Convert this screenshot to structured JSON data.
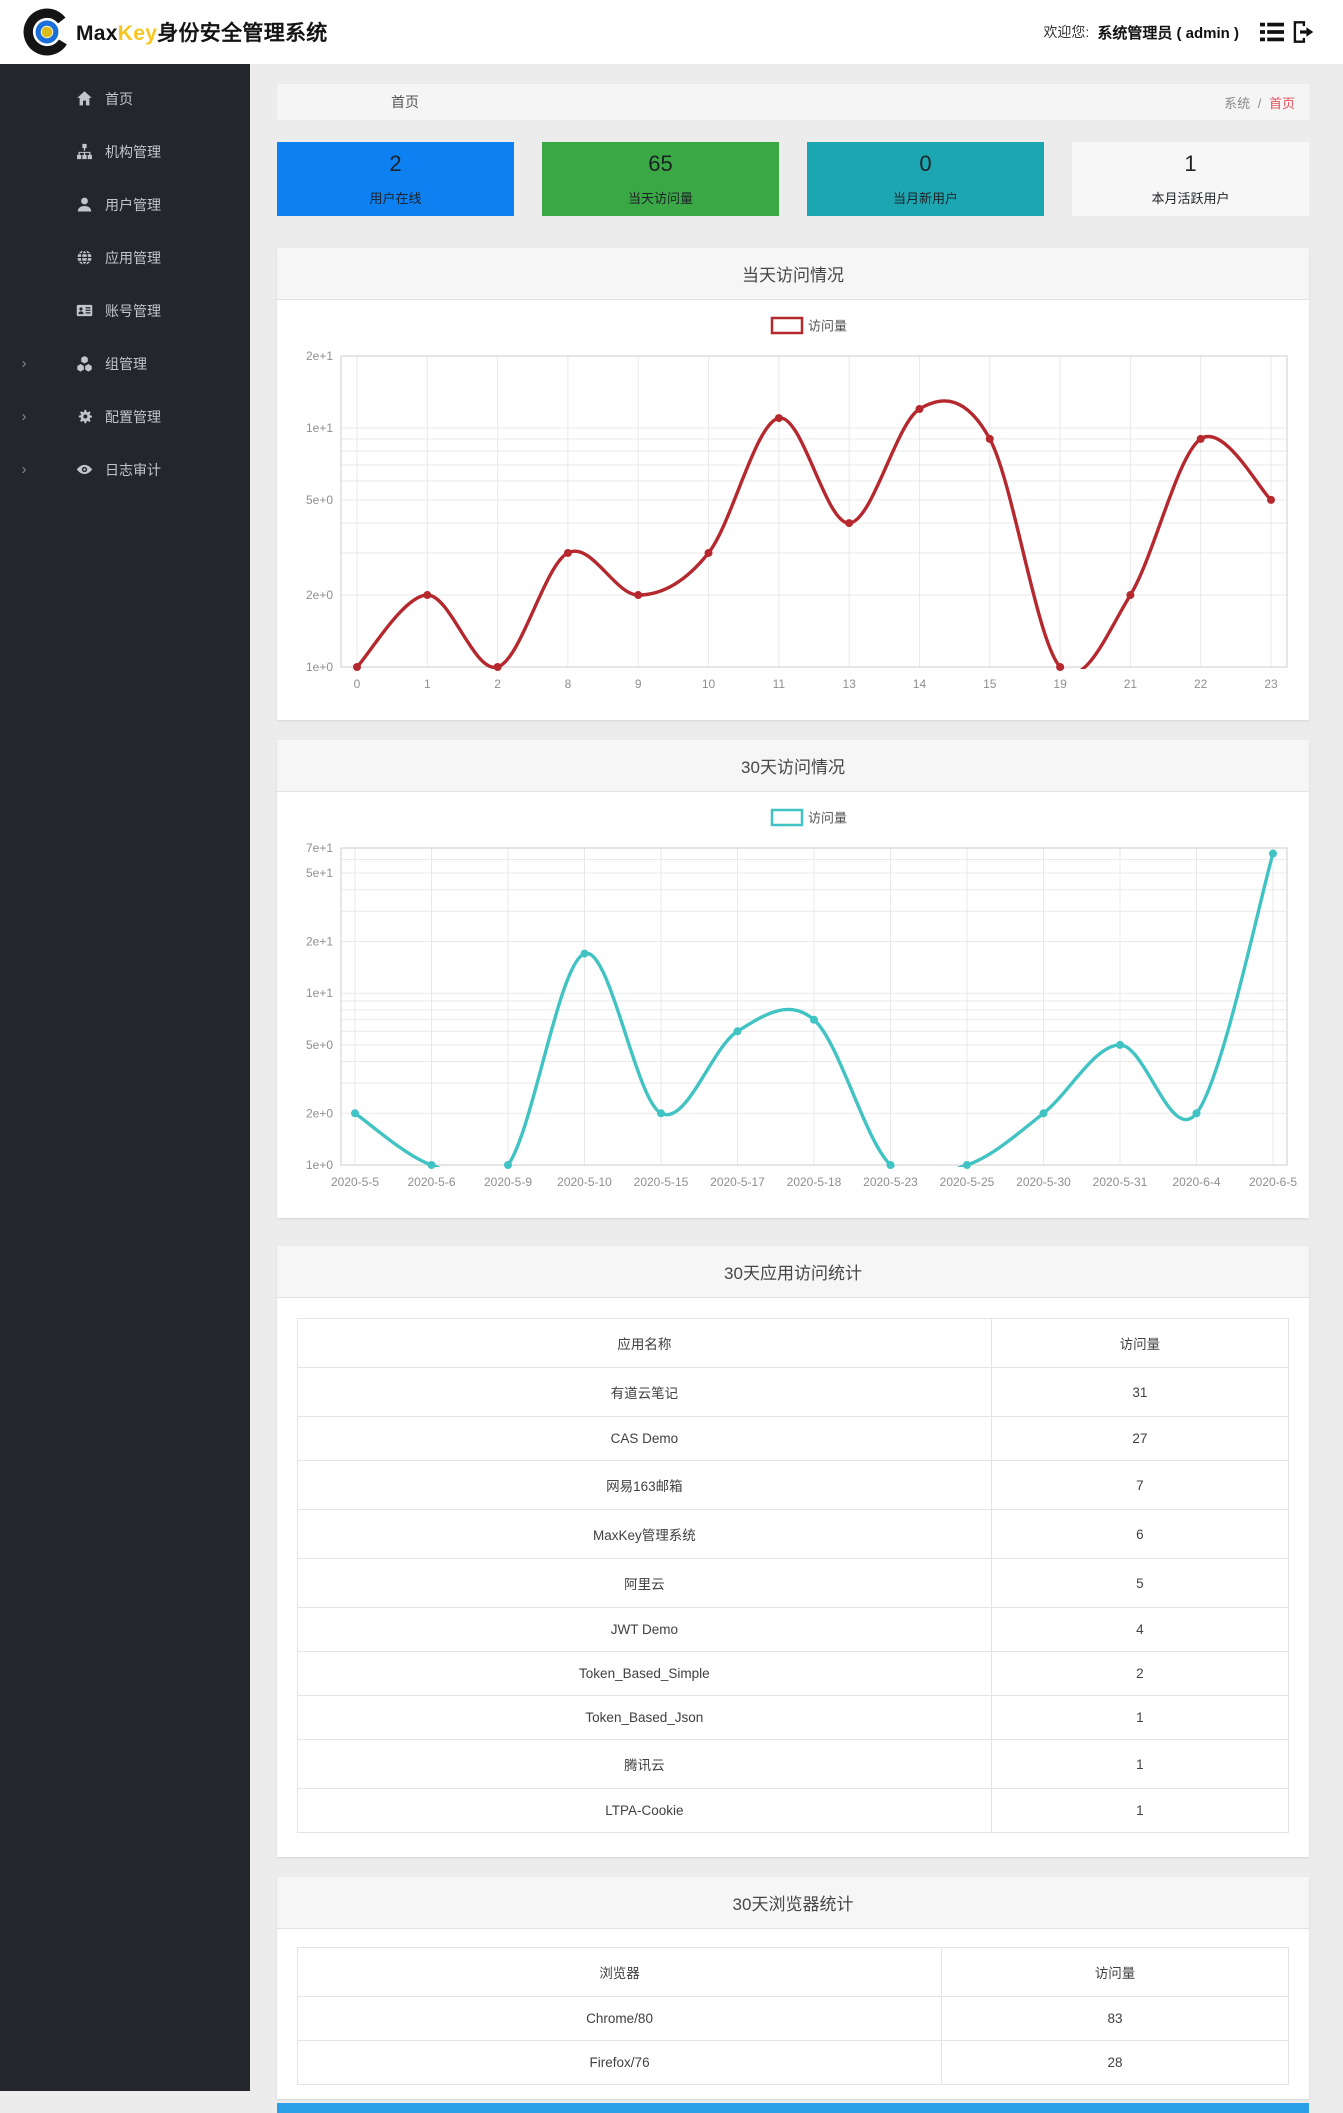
{
  "header": {
    "logo_prefix": "Max",
    "logo_mid": "Key",
    "logo_suffix": "身份安全管理系统",
    "welcome_label": "欢迎您:",
    "user": "系统管理员 ( admin )"
  },
  "sidebar": {
    "items": [
      {
        "label": "首页",
        "icon": "home-icon",
        "expandable": false
      },
      {
        "label": "机构管理",
        "icon": "sitemap-icon",
        "expandable": false
      },
      {
        "label": "用户管理",
        "icon": "user-icon",
        "expandable": false
      },
      {
        "label": "应用管理",
        "icon": "globe-icon",
        "expandable": false
      },
      {
        "label": "账号管理",
        "icon": "id-card-icon",
        "expandable": false
      },
      {
        "label": "组管理",
        "icon": "cubes-icon",
        "expandable": true
      },
      {
        "label": "配置管理",
        "icon": "cogs-icon",
        "expandable": true
      },
      {
        "label": "日志审计",
        "icon": "eye-icon",
        "expandable": true
      }
    ],
    "chevron": "›"
  },
  "breadcrumb": {
    "page_title": "首页",
    "path_root": "系统",
    "path_sep": "/",
    "path_current": "首页"
  },
  "stat_cards": [
    {
      "value": "2",
      "label": "用户在线",
      "color": "#0d80f2"
    },
    {
      "value": "65",
      "label": "当天访问量",
      "color": "#39a845"
    },
    {
      "value": "0",
      "label": "当月新用户",
      "color": "#1ba6b2"
    },
    {
      "value": "1",
      "label": "本月活跃用户",
      "color": "#f7f7f7"
    }
  ],
  "panels": {
    "today_visits_title": "当天访问情况",
    "month_visits_title": "30天访问情况",
    "app_stats_title": "30天应用访问统计",
    "browser_stats_title": "30天浏览器统计"
  },
  "chart_data": [
    {
      "type": "line",
      "name": "today-visits-chart",
      "title": "当天访问情况",
      "legend": "访问量",
      "color": "#b5282e",
      "yscale": "log",
      "ylim": [
        1,
        20
      ],
      "x_categories": [
        "0",
        "1",
        "2",
        "8",
        "9",
        "10",
        "11",
        "13",
        "14",
        "15",
        "19",
        "21",
        "22",
        "23"
      ],
      "values": [
        1,
        2,
        1,
        3,
        2,
        3,
        11,
        4,
        12,
        9,
        1,
        2,
        9,
        5
      ],
      "ytick_values": [
        1,
        2,
        5,
        10,
        20
      ],
      "ytick_labels": [
        "1e+0",
        "2e+0",
        "5e+0",
        "1e+1",
        "2e+1"
      ],
      "grid_values": [
        2,
        3,
        4,
        5,
        6,
        7,
        8,
        9,
        10,
        20
      ],
      "grid": true,
      "legend_position": "top-center"
    },
    {
      "type": "line",
      "name": "month-visits-chart",
      "title": "30天访问情况",
      "legend": "访问量",
      "color": "#41c3c4",
      "yscale": "log",
      "ylim": [
        1,
        70
      ],
      "x_categories": [
        "2020-5-5",
        "2020-5-6",
        "2020-5-9",
        "2020-5-10",
        "2020-5-15",
        "2020-5-17",
        "2020-5-18",
        "2020-5-23",
        "2020-5-25",
        "2020-5-30",
        "2020-5-31",
        "2020-6-4",
        "2020-6-5"
      ],
      "values": [
        2,
        1,
        1,
        17,
        2,
        6,
        7,
        1,
        1,
        2,
        5,
        2,
        65
      ],
      "ytick_values": [
        1,
        2,
        5,
        10,
        20,
        50,
        70
      ],
      "ytick_labels": [
        "1e+0",
        "2e+0",
        "5e+0",
        "1e+1",
        "2e+1",
        "5e+1",
        "7e+1"
      ],
      "grid_values": [
        2,
        3,
        4,
        5,
        6,
        7,
        8,
        9,
        10,
        20,
        30,
        40,
        50,
        60,
        70
      ],
      "grid": true,
      "legend_position": "top-center"
    }
  ],
  "app_table": {
    "headers": [
      "应用名称",
      "访问量"
    ],
    "rows": [
      [
        "有道云笔记",
        "31"
      ],
      [
        "CAS Demo",
        "27"
      ],
      [
        "网易163邮箱",
        "7"
      ],
      [
        "MaxKey管理系统",
        "6"
      ],
      [
        "阿里云",
        "5"
      ],
      [
        "JWT Demo",
        "4"
      ],
      [
        "Token_Based_Simple",
        "2"
      ],
      [
        "Token_Based_Json",
        "1"
      ],
      [
        "腾讯云",
        "1"
      ],
      [
        "LTPA-Cookie",
        "1"
      ]
    ]
  },
  "browser_table": {
    "headers": [
      "浏览器",
      "访问量"
    ],
    "rows": [
      [
        "Chrome/80",
        "83"
      ],
      [
        "Firefox/76",
        "28"
      ]
    ]
  },
  "colors": {
    "footer_strip": "#2ba0e8",
    "chart_red": "#b5282e",
    "chart_teal": "#41c3c4",
    "breadcrumb_active": "#e7505a"
  }
}
